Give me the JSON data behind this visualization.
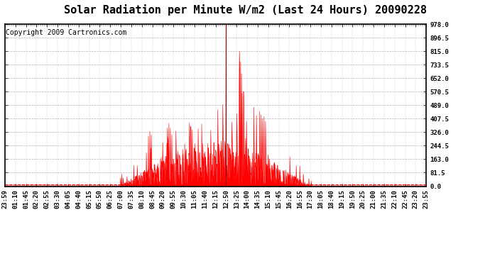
{
  "title": "Solar Radiation per Minute W/m2 (Last 24 Hours) 20090228",
  "copyright": "Copyright 2009 Cartronics.com",
  "ymin": 0.0,
  "ymax": 978.0,
  "yticks": [
    0.0,
    81.5,
    163.0,
    244.5,
    326.0,
    407.5,
    489.0,
    570.5,
    652.0,
    733.5,
    815.0,
    896.5,
    978.0
  ],
  "xtick_labels": [
    "23:59",
    "01:10",
    "01:45",
    "02:20",
    "02:55",
    "03:30",
    "04:05",
    "04:40",
    "05:15",
    "05:50",
    "06:25",
    "07:00",
    "07:35",
    "08:10",
    "08:45",
    "09:20",
    "09:55",
    "10:30",
    "11:05",
    "11:40",
    "12:15",
    "12:50",
    "13:25",
    "14:00",
    "14:35",
    "15:10",
    "15:45",
    "16:20",
    "16:55",
    "17:30",
    "18:05",
    "18:40",
    "19:15",
    "19:50",
    "20:25",
    "21:00",
    "21:35",
    "22:10",
    "22:45",
    "23:20",
    "23:55"
  ],
  "fill_color": "#FF0000",
  "line_color": "#FF0000",
  "bg_color": "#FFFFFF",
  "grid_color": "#AAAAAA",
  "border_color": "#000000",
  "title_fontsize": 11,
  "copyright_fontsize": 7,
  "tick_fontsize": 6.5,
  "n_points": 1440,
  "vertical_line_x": 755
}
